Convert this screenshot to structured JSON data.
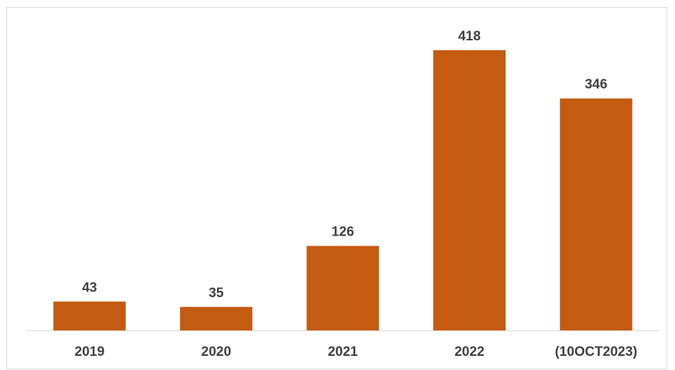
{
  "chart_data": {
    "type": "bar",
    "categories": [
      "2019",
      "2020",
      "2021",
      "2022",
      "(10OCT2023)"
    ],
    "values": [
      43,
      35,
      126,
      418,
      346
    ],
    "title": "",
    "xlabel": "",
    "ylabel": "",
    "ylim": [
      0,
      418
    ],
    "grid": false,
    "legend": "none",
    "data_labels": true,
    "bar_color": "#c55a11",
    "label_color": "#404040",
    "axis_color": "#d9d9d9"
  }
}
